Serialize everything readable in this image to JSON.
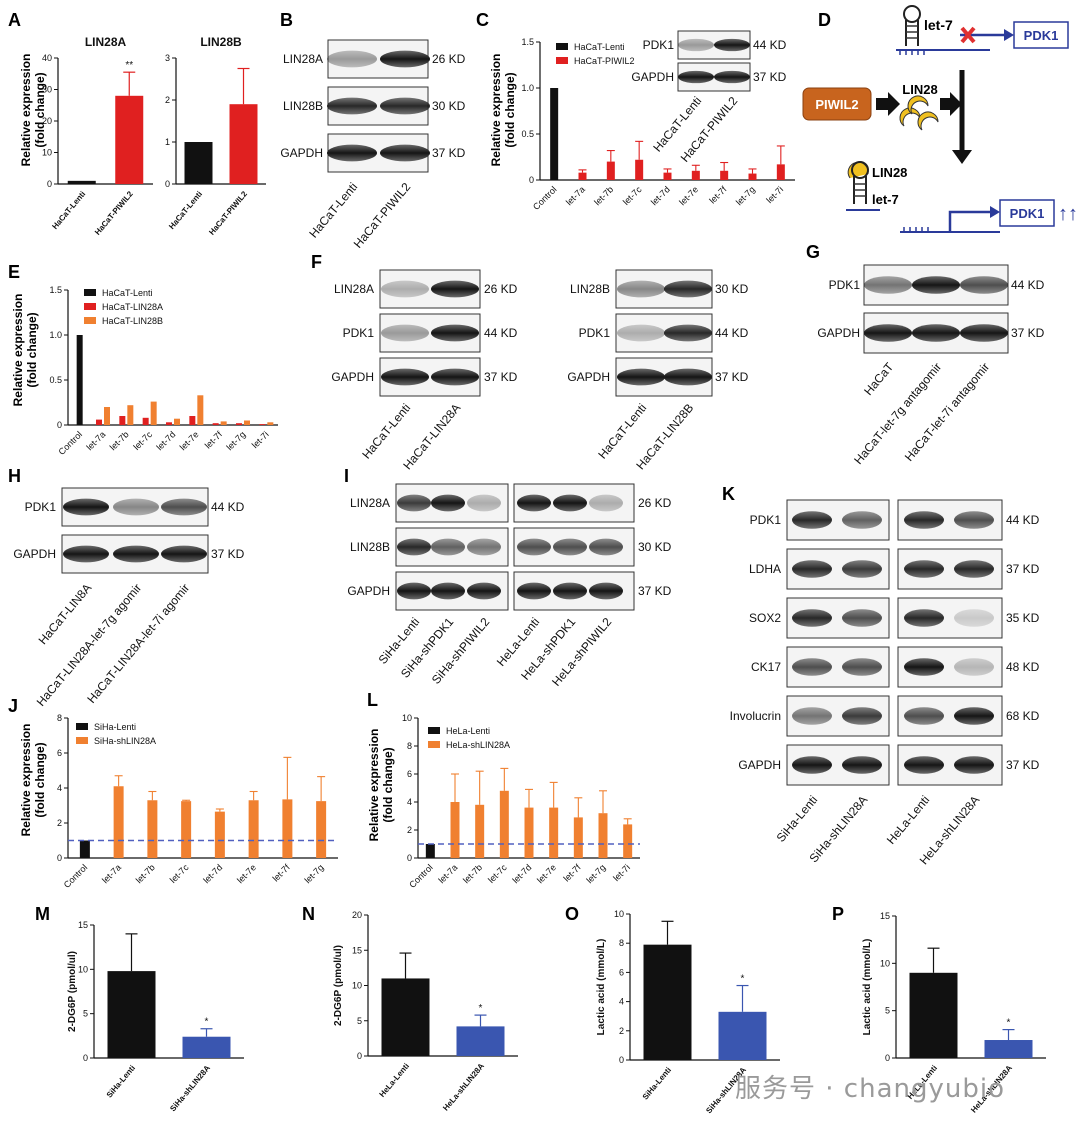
{
  "panel_letters": [
    "A",
    "B",
    "C",
    "D",
    "E",
    "F",
    "G",
    "H",
    "I",
    "J",
    "K",
    "L",
    "M",
    "N",
    "O",
    "P"
  ],
  "colors": {
    "black": "#111111",
    "red": "#e02020",
    "orange": "#f08030",
    "blue": "#3a56b0",
    "dash": "#5060c0",
    "pdk_box": "#2a3a9a",
    "piwil2_box": "#c8641e"
  },
  "axis_label_rel": "Relative expression",
  "axis_label_fold": "(fold change)",
  "watermark": "服务号 · changyubio",
  "chart_data": [
    {
      "panel": "A",
      "type": "bar",
      "title": "LIN28A",
      "categories": [
        "HaCaT-Lenti",
        "HaCaT-PIWIL2"
      ],
      "values": [
        1,
        28
      ],
      "errors": [
        0,
        7.5
      ],
      "ylim": [
        0,
        40
      ],
      "yticks": [
        0,
        10,
        20,
        30,
        40
      ],
      "significance": [
        "",
        "**"
      ],
      "bar_colors": [
        "#111111",
        "#e02020"
      ],
      "ylabel": "Relative expression (fold change)"
    },
    {
      "panel": "A2",
      "type": "bar",
      "title": "LIN28B",
      "categories": [
        "HaCaT-Lenti",
        "HaCaT-PIWIL2"
      ],
      "values": [
        1,
        1.9
      ],
      "errors": [
        0,
        0.85
      ],
      "ylim": [
        0,
        3
      ],
      "yticks": [
        0,
        1,
        2,
        3
      ],
      "significance": [
        "",
        ""
      ],
      "bar_colors": [
        "#111111",
        "#e02020"
      ]
    },
    {
      "panel": "C",
      "type": "bar",
      "categories": [
        "Control",
        "let-7a",
        "let-7b",
        "let-7c",
        "let-7d",
        "let-7e",
        "let-7f",
        "let-7g",
        "let-7i"
      ],
      "series": [
        {
          "name": "HaCaT-Lenti",
          "values": [
            1,
            null,
            null,
            null,
            null,
            null,
            null,
            null,
            null
          ]
        },
        {
          "name": "HaCaT-PIWIL2",
          "values": [
            null,
            0.08,
            0.2,
            0.22,
            0.08,
            0.1,
            0.1,
            0.07,
            0.17
          ]
        }
      ],
      "errors": [
        0,
        0.03,
        0.12,
        0.2,
        0.04,
        0.06,
        0.09,
        0.05,
        0.2
      ],
      "ylim": [
        0,
        1.5
      ],
      "yticks": [
        0,
        0.5,
        1.0,
        1.5
      ],
      "ylabel": "Relative expression (fold change)"
    },
    {
      "panel": "E",
      "type": "bar",
      "categories": [
        "Control",
        "let-7a",
        "let-7b",
        "let-7c",
        "let-7d",
        "let-7e",
        "let-7f",
        "let-7g",
        "let-7i"
      ],
      "series": [
        {
          "name": "HaCaT-Lenti",
          "values": [
            1,
            null,
            null,
            null,
            null,
            null,
            null,
            null,
            null
          ]
        },
        {
          "name": "HaCaT-LIN28A",
          "values": [
            null,
            0.06,
            0.1,
            0.08,
            0.03,
            0.1,
            0.02,
            0.02,
            0.01
          ]
        },
        {
          "name": "HaCaT-LIN28B",
          "values": [
            null,
            0.2,
            0.22,
            0.26,
            0.07,
            0.33,
            0.04,
            0.05,
            0.03
          ]
        }
      ],
      "ylim": [
        0,
        1.5
      ],
      "yticks": [
        0,
        0.5,
        1.0,
        1.5
      ],
      "ylabel": "Relative expression (fold change)"
    },
    {
      "panel": "J",
      "type": "bar",
      "categories": [
        "Control",
        "let-7a",
        "let-7b",
        "let-7c",
        "let-7d",
        "let-7e",
        "let-7f",
        "let-7g"
      ],
      "series": [
        {
          "name": "SiHa-Lenti",
          "values": [
            1,
            null,
            null,
            null,
            null,
            null,
            null,
            null
          ]
        },
        {
          "name": "SiHa-shLIN28A",
          "values": [
            null,
            4.1,
            3.3,
            3.25,
            2.65,
            3.3,
            3.35,
            3.25
          ]
        }
      ],
      "errors": [
        0,
        0.6,
        0.5,
        0.05,
        0.15,
        0.5,
        2.4,
        1.4
      ],
      "ylim": [
        0,
        8
      ],
      "yticks": [
        0,
        2,
        4,
        6,
        8
      ],
      "baseline": 1,
      "ylabel": "Relative expression (fold change)"
    },
    {
      "panel": "K",
      "type": "bar",
      "categories": [
        "Control",
        "let-7a",
        "let-7b",
        "let-7c",
        "let-7d",
        "let-7e",
        "let-7f",
        "let-7g",
        "let-7i"
      ],
      "series": [
        {
          "name": "HeLa-Lenti",
          "values": [
            1,
            null,
            null,
            null,
            null,
            null,
            null,
            null,
            null
          ]
        },
        {
          "name": "HeLa-shLIN28A",
          "values": [
            null,
            4.0,
            3.8,
            4.8,
            3.6,
            3.6,
            2.9,
            3.2,
            2.4
          ]
        }
      ],
      "errors": [
        0,
        2.0,
        2.4,
        1.6,
        1.3,
        1.8,
        1.4,
        1.6,
        0.4
      ],
      "ylim": [
        0,
        10
      ],
      "yticks": [
        0,
        2,
        4,
        6,
        8,
        10
      ],
      "baseline": 1,
      "ylabel": "Relative expression (fold change)"
    },
    {
      "panel": "M",
      "type": "bar",
      "categories": [
        "SiHa-Lenti",
        "SiHa-shLIN28A"
      ],
      "values": [
        9.8,
        2.4
      ],
      "errors": [
        4.2,
        0.9
      ],
      "ylim": [
        0,
        15
      ],
      "yticks": [
        0,
        5,
        10,
        15
      ],
      "significance": [
        "",
        "*"
      ],
      "bar_colors": [
        "#111111",
        "#3a56b0"
      ],
      "ylabel": "2-DG6P (pmol/ul)"
    },
    {
      "panel": "N",
      "type": "bar",
      "categories": [
        "HeLa-Lenti",
        "HeLa-shLIN28A"
      ],
      "values": [
        11,
        4.2
      ],
      "errors": [
        3.6,
        1.6
      ],
      "ylim": [
        0,
        20
      ],
      "yticks": [
        0,
        5,
        10,
        15,
        20
      ],
      "significance": [
        "",
        "*"
      ],
      "bar_colors": [
        "#111111",
        "#3a56b0"
      ],
      "ylabel": "2-DG6P (pmol/ul)"
    },
    {
      "panel": "O",
      "type": "bar",
      "categories": [
        "SiHa-Lenti",
        "SiHa-shLIN28A"
      ],
      "values": [
        7.9,
        3.3
      ],
      "errors": [
        1.6,
        1.8
      ],
      "ylim": [
        0,
        10
      ],
      "yticks": [
        0,
        2,
        4,
        6,
        8,
        10
      ],
      "significance": [
        "",
        "*"
      ],
      "bar_colors": [
        "#111111",
        "#3a56b0"
      ],
      "ylabel": "Lactic acid (mmol/L)"
    },
    {
      "panel": "P",
      "type": "bar",
      "categories": [
        "HeLa-Lenti",
        "HeLa-shLIN28A"
      ],
      "values": [
        9,
        1.9
      ],
      "errors": [
        2.6,
        1.1
      ],
      "ylim": [
        0,
        15
      ],
      "yticks": [
        0,
        5,
        10,
        15
      ],
      "significance": [
        "",
        "*"
      ],
      "bar_colors": [
        "#111111",
        "#3a56b0"
      ],
      "ylabel": "Lactic acid (mmol/L)"
    }
  ],
  "blots": {
    "B": {
      "proteins": [
        "LIN28A",
        "LIN28B",
        "GAPDH"
      ],
      "sizes": [
        "26 KD",
        "30 KD",
        "37 KD"
      ],
      "lanes": [
        "HaCaT-Lenti",
        "HaCaT-PIWIL2"
      ]
    },
    "C_inset": {
      "proteins": [
        "PDK1",
        "GAPDH"
      ],
      "sizes": [
        "44 KD",
        "37 KD"
      ],
      "lanes": [
        "HaCaT-Lenti",
        "HaCaT-PIWIL2"
      ]
    },
    "F1": {
      "proteins": [
        "LIN28A",
        "PDK1",
        "GAPDH"
      ],
      "sizes": [
        "26 KD",
        "44 KD",
        "37 KD"
      ],
      "lanes": [
        "HaCaT-Lenti",
        "HaCaT-LIN28A"
      ]
    },
    "F2": {
      "proteins": [
        "LIN28B",
        "PDK1",
        "GAPDH"
      ],
      "sizes": [
        "30 KD",
        "44 KD",
        "37 KD"
      ],
      "lanes": [
        "HaCaT-Lenti",
        "HaCaT-LIN28B"
      ]
    },
    "G": {
      "proteins": [
        "PDK1",
        "GAPDH"
      ],
      "sizes": [
        "44 KD",
        "37 KD"
      ],
      "lanes": [
        "HaCaT",
        "HaCaT-let-7g antagomir",
        "HaCaT-let-7i antagomir"
      ]
    },
    "H": {
      "proteins": [
        "PDK1",
        "GAPDH"
      ],
      "sizes": [
        "44 KD",
        "37 KD"
      ],
      "lanes": [
        "HaCaT-LIN8A",
        "HaCaT-LIN28A-let-7g agomir",
        "HaCaT-LIN28A-let-7i agomir"
      ]
    },
    "I": {
      "proteins": [
        "LIN28A",
        "LIN28B",
        "GAPDH"
      ],
      "sizes": [
        "26 KD",
        "30 KD",
        "37 KD"
      ],
      "lanes": [
        "SiHa-Lenti",
        "SiHa-shPDK1",
        "SiHa-shPIWIL2",
        "HeLa-Lenti",
        "HeLa-shPDK1",
        "HeLa-shPIWIL2"
      ]
    },
    "L": {
      "proteins": [
        "PDK1",
        "LDHA",
        "SOX2",
        "CK17",
        "Involucrin",
        "GAPDH"
      ],
      "sizes": [
        "44 KD",
        "37 KD",
        "35 KD",
        "48 KD",
        "68 KD",
        "37 KD"
      ],
      "lanes": [
        "SiHa-Lenti",
        "SiHa-shLIN28A",
        "HeLa-Lenti",
        "HeLa-shLIN28A"
      ]
    }
  },
  "diagram_D": {
    "let7": "let-7",
    "pdk1": "PDK1",
    "piwil2": "PIWIL2",
    "lin28": "LIN28",
    "arrows_up": "↑↑↑"
  }
}
